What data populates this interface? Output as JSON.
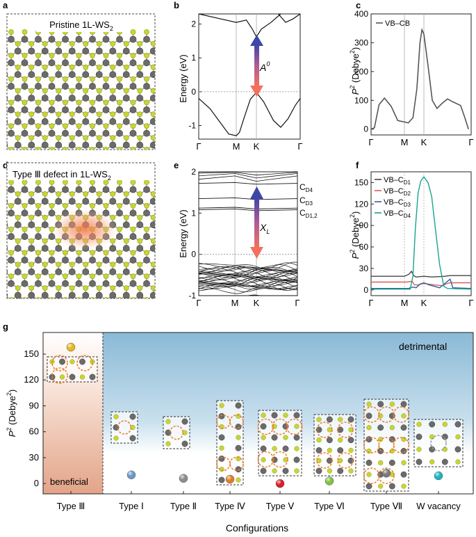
{
  "panels": {
    "a": {
      "letter": "a",
      "title": "Pristine 1L-WS",
      "title_sub": "2"
    },
    "d": {
      "letter": "d",
      "title": "Type Ⅲ defect in 1L-WS",
      "title_sub": "2"
    },
    "b": {
      "letter": "b",
      "ylabel": "Energy (eV)",
      "annotation": "A",
      "annotation_sup": "0"
    },
    "e": {
      "letter": "e",
      "ylabel": "Energy (eV)",
      "annotation": "X",
      "annotation_sub": "L",
      "level_labels": [
        {
          "main": "C",
          "sub": "D4"
        },
        {
          "main": "C",
          "sub": "D3"
        },
        {
          "main": "C",
          "sub": "D1,2"
        }
      ]
    },
    "c": {
      "letter": "c",
      "ylabel": "P",
      "ylabel_sup": "2",
      "ylabel_unit": " (Debye",
      "ylabel_unit_sup": "2",
      "ylabel_close": ")"
    },
    "f": {
      "letter": "f",
      "ylabel": "P",
      "ylabel_sup": "2",
      "ylabel_unit": " (Debye",
      "ylabel_unit_sup": "2",
      "ylabel_close": ")"
    },
    "g": {
      "letter": "g",
      "ylabel": "P",
      "ylabel_sup": "2",
      "ylabel_unit": " (Debye",
      "ylabel_unit_sup": "2",
      "ylabel_close": ")",
      "xlabel": "Configurations",
      "region_beneficial": "beneficial",
      "region_detrimental": "detrimental"
    }
  },
  "chart_data": [
    {
      "panel": "b",
      "type": "line",
      "x_ticks": [
        "Γ",
        "M",
        "K",
        "Γ"
      ],
      "y_ticks": [
        "-1",
        "0",
        "1",
        "2"
      ],
      "ylim": [
        -1.4,
        2.3
      ],
      "valence_band": [
        [
          0,
          -0.2
        ],
        [
          0.15,
          -0.5
        ],
        [
          0.3,
          -0.95
        ],
        [
          0.4,
          -1.25
        ],
        [
          0.5,
          -1.3
        ],
        [
          0.58,
          -1.2
        ],
        [
          0.7,
          -0.75
        ],
        [
          0.85,
          -0.22
        ],
        [
          1.0,
          -0.02
        ],
        [
          1.15,
          -0.3
        ],
        [
          1.35,
          -0.85
        ],
        [
          1.5,
          -1.05
        ],
        [
          1.65,
          -0.8
        ],
        [
          1.8,
          -0.4
        ],
        [
          1.9,
          -0.2
        ]
      ],
      "conduction_band": [
        [
          0,
          2.3
        ],
        [
          0.3,
          2.15
        ],
        [
          0.5,
          2.05
        ],
        [
          0.75,
          2.12
        ],
        [
          0.9,
          1.85
        ],
        [
          1.0,
          1.62
        ],
        [
          1.1,
          1.85
        ],
        [
          1.3,
          2.05
        ],
        [
          1.5,
          2.3
        ]
      ],
      "conduction_band_2": [
        [
          1.45,
          2.3
        ],
        [
          1.6,
          2.05
        ],
        [
          1.75,
          2.15
        ],
        [
          1.9,
          2.3
        ]
      ]
    },
    {
      "panel": "c",
      "type": "line",
      "x_ticks": [
        "Γ",
        "M",
        "K",
        "Γ"
      ],
      "y_ticks": [
        "0",
        "100",
        "200",
        "300",
        "400"
      ],
      "ylim": [
        -20,
        400
      ],
      "series": [
        {
          "name": "VB–CB",
          "points": [
            [
              0,
              0
            ],
            [
              0.05,
              5
            ],
            [
              0.12,
              85
            ],
            [
              0.2,
              108
            ],
            [
              0.3,
              80
            ],
            [
              0.4,
              30
            ],
            [
              0.5,
              25
            ],
            [
              0.6,
              22
            ],
            [
              0.72,
              40
            ],
            [
              0.82,
              140
            ],
            [
              0.9,
              300
            ],
            [
              0.95,
              345
            ],
            [
              1.0,
              330
            ],
            [
              1.08,
              220
            ],
            [
              1.16,
              100
            ],
            [
              1.25,
              72
            ],
            [
              1.35,
              90
            ],
            [
              1.45,
              105
            ],
            [
              1.55,
              95
            ],
            [
              1.7,
              82
            ],
            [
              1.78,
              40
            ],
            [
              1.85,
              0
            ]
          ]
        }
      ]
    },
    {
      "panel": "e",
      "type": "line",
      "x_ticks": [
        "Γ",
        "M",
        "K",
        "Γ"
      ],
      "y_ticks": [
        "-1",
        "0",
        "1",
        "2"
      ],
      "ylim": [
        -1,
        2
      ],
      "defect_levels": [
        1.72,
        1.35,
        1.12,
        1.08
      ]
    },
    {
      "panel": "f",
      "type": "line",
      "x_ticks": [
        "Γ",
        "M",
        "K",
        "Γ"
      ],
      "y_ticks": [
        "0",
        "30",
        "60",
        "90",
        "120",
        "150"
      ],
      "ylim": [
        -8,
        165
      ],
      "series": [
        {
          "name": "VB–C",
          "name_sub": "D1",
          "color": "#444444",
          "points": [
            [
              0,
              19
            ],
            [
              0.5,
              19
            ],
            [
              0.62,
              22
            ],
            [
              0.68,
              26
            ],
            [
              0.74,
              20
            ],
            [
              0.8,
              18
            ],
            [
              1.0,
              19
            ],
            [
              1.15,
              18
            ],
            [
              1.4,
              19
            ],
            [
              1.5,
              20
            ],
            [
              1.9,
              20
            ]
          ]
        },
        {
          "name": "VB–C",
          "name_sub": "D2",
          "color": "#e05a5a",
          "points": [
            [
              0,
              11
            ],
            [
              0.55,
              11
            ],
            [
              0.7,
              12
            ],
            [
              0.76,
              7
            ],
            [
              0.85,
              7
            ],
            [
              1.0,
              9
            ],
            [
              1.2,
              7
            ],
            [
              1.35,
              6
            ],
            [
              1.45,
              9
            ],
            [
              1.5,
              10
            ],
            [
              1.9,
              10
            ]
          ]
        },
        {
          "name": "VB–C",
          "name_sub": "D3",
          "color": "#2f5f9f",
          "points": [
            [
              0,
              2
            ],
            [
              0.6,
              2
            ],
            [
              0.72,
              4
            ],
            [
              0.8,
              3
            ],
            [
              0.9,
              8
            ],
            [
              1.0,
              10
            ],
            [
              1.1,
              7
            ],
            [
              1.3,
              3
            ],
            [
              1.45,
              12
            ],
            [
              1.5,
              15
            ],
            [
              1.55,
              3
            ],
            [
              1.9,
              2
            ]
          ]
        },
        {
          "name": "VB–C",
          "name_sub": "D4",
          "color": "#19a38f",
          "points": [
            [
              0,
              1
            ],
            [
              0.65,
              1
            ],
            [
              0.72,
              20
            ],
            [
              0.78,
              85
            ],
            [
              0.85,
              135
            ],
            [
              0.92,
              152
            ],
            [
              1.0,
              158
            ],
            [
              1.08,
              150
            ],
            [
              1.15,
              130
            ],
            [
              1.22,
              85
            ],
            [
              1.3,
              35
            ],
            [
              1.38,
              5
            ],
            [
              1.45,
              2
            ],
            [
              1.9,
              1
            ]
          ]
        }
      ]
    },
    {
      "panel": "g",
      "type": "scatter",
      "categories": [
        "Type Ⅲ",
        "Type Ⅰ",
        "Type Ⅱ",
        "Type Ⅳ",
        "Type Ⅴ",
        "Type Ⅵ",
        "Type Ⅶ",
        "W vacancy"
      ],
      "values": [
        158,
        10,
        6,
        5,
        0,
        3,
        12,
        9
      ],
      "colors": [
        "#e6b81c",
        "#6d97c8",
        "#8c8c8c",
        "#e07d2a",
        "#d81e2a",
        "#7fc243",
        "#7a7a7a",
        "#1eb4c2"
      ],
      "y_ticks": [
        "0",
        "30",
        "60",
        "90",
        "120",
        "150"
      ],
      "ylim": [
        -12,
        175
      ]
    }
  ]
}
